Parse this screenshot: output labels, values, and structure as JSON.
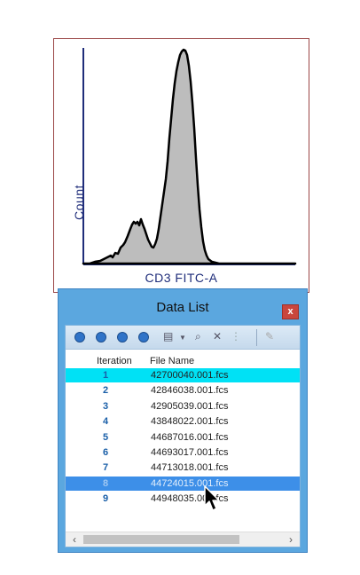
{
  "histogram": {
    "y_axis_label": "Count",
    "x_axis_label": "CD3 FITC-A",
    "frame_color": "#9b4646",
    "axis_color": "#1f2d7a",
    "fill_color": "#bdbdbd"
  },
  "data_list": {
    "title": "Data List",
    "close_label": "x",
    "toolbar_icons": [
      "add-icon",
      "remove-icon",
      "move-up-icon",
      "move-down-icon",
      "copy-icon",
      "dropdown-arrow-icon",
      "search-icon",
      "delete-icon",
      "link-icon",
      "edit-icon"
    ],
    "columns": {
      "iteration": "Iteration",
      "file_name": "File Name"
    },
    "rows": [
      {
        "iteration": "1",
        "file": "42700040.001.fcs",
        "state": "highlighted-cyan"
      },
      {
        "iteration": "2",
        "file": "42846038.001.fcs",
        "state": "normal"
      },
      {
        "iteration": "3",
        "file": "42905039.001.fcs",
        "state": "normal"
      },
      {
        "iteration": "4",
        "file": "43848022.001.fcs",
        "state": "normal"
      },
      {
        "iteration": "5",
        "file": "44687016.001.fcs",
        "state": "normal"
      },
      {
        "iteration": "6",
        "file": "44693017.001.fcs",
        "state": "normal"
      },
      {
        "iteration": "7",
        "file": "44713018.001.fcs",
        "state": "normal"
      },
      {
        "iteration": "8",
        "file": "44724015.001.fcs",
        "state": "selected"
      },
      {
        "iteration": "9",
        "file": "44948035.001.fcs",
        "state": "normal"
      }
    ],
    "scroll_left": "‹",
    "scroll_right": "›",
    "accent_color": "#5ba7df",
    "selected_color": "#3d8fe8",
    "highlight_color": "#00e1f5"
  }
}
